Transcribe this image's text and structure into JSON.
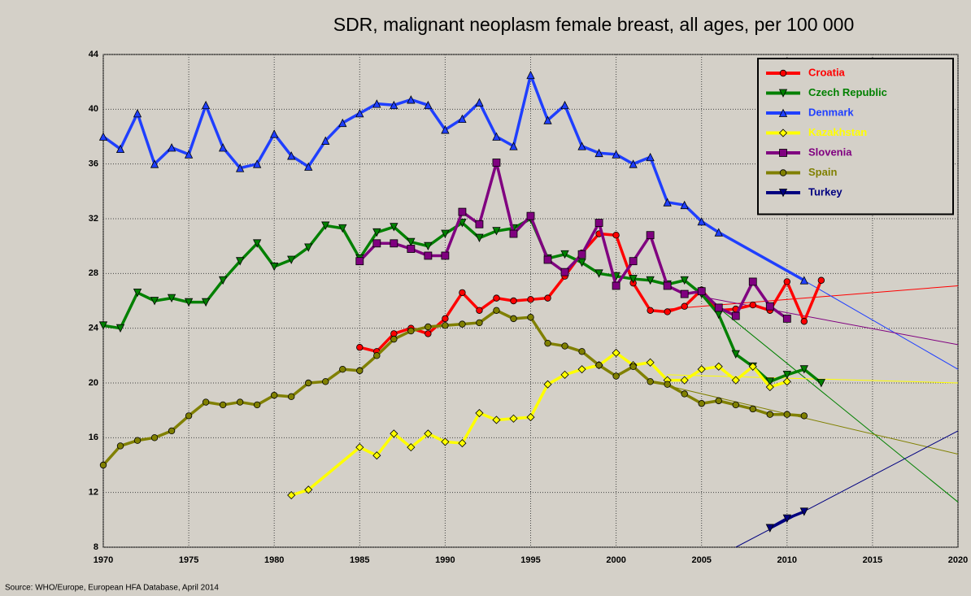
{
  "chart_data": {
    "type": "line",
    "title": "SDR, malignant neoplasm female breast, all ages, per 100 000",
    "source": "Source: WHO/Europe, European HFA Database, April 2014",
    "xlim": [
      1970,
      2020
    ],
    "xticks": [
      1970,
      1975,
      1980,
      1985,
      1990,
      1995,
      2000,
      2005,
      2010,
      2015,
      2020
    ],
    "ylim": [
      8,
      44
    ],
    "yticks": [
      8,
      12,
      16,
      20,
      24,
      28,
      32,
      36,
      40,
      44
    ],
    "grid": true,
    "legend": "upper right",
    "series": [
      {
        "name": "Croatia",
        "color": "#ff0000",
        "marker": "circle",
        "x": [
          1985,
          1986,
          1987,
          1988,
          1989,
          1990,
          1991,
          1992,
          1993,
          1994,
          1995,
          1996,
          1997,
          1998,
          1999,
          2000,
          2001,
          2002,
          2003,
          2004,
          2005,
          2006,
          2007,
          2008,
          2009,
          2010,
          2011,
          2012
        ],
        "values": [
          22.6,
          22.3,
          23.6,
          24.0,
          23.6,
          24.7,
          26.6,
          25.3,
          26.2,
          26.0,
          26.1,
          26.2,
          27.8,
          29.5,
          30.9,
          30.8,
          27.3,
          25.3,
          25.2,
          25.6,
          26.8,
          25.3,
          25.4,
          25.7,
          25.3,
          27.4,
          24.5,
          27.5
        ],
        "trend": {
          "x": [
            2003,
            2020
          ],
          "values": [
            25.4,
            27.1
          ]
        }
      },
      {
        "name": "Czech Republic",
        "color": "#008000",
        "marker": "tri-down",
        "x": [
          1970,
          1971,
          1972,
          1973,
          1974,
          1975,
          1976,
          1977,
          1978,
          1979,
          1980,
          1981,
          1982,
          1983,
          1984,
          1985,
          1986,
          1987,
          1988,
          1989,
          1990,
          1991,
          1992,
          1993,
          1994,
          1995,
          1996,
          1997,
          1998,
          1999,
          2000,
          2001,
          2002,
          2003,
          2004,
          2005,
          2006,
          2007,
          2008,
          2009,
          2010,
          2011,
          2012
        ],
        "values": [
          24.2,
          24.0,
          26.6,
          26.0,
          26.2,
          25.9,
          25.9,
          27.5,
          28.9,
          30.2,
          28.5,
          29.0,
          29.9,
          31.5,
          31.3,
          29.1,
          31.0,
          31.4,
          30.3,
          30.0,
          30.9,
          31.7,
          30.6,
          31.1,
          31.3,
          32.0,
          29.1,
          29.4,
          28.8,
          28.0,
          27.8,
          27.6,
          27.5,
          27.2,
          27.5,
          26.5,
          25.0,
          22.1,
          21.2,
          20.1,
          20.6,
          21.0,
          20.0
        ],
        "trend": {
          "x": [
            2005,
            2020
          ],
          "values": [
            26.5,
            11.3
          ]
        }
      },
      {
        "name": "Denmark",
        "color": "#1f3fff",
        "marker": "tri-up",
        "x": [
          1970,
          1971,
          1972,
          1973,
          1974,
          1975,
          1976,
          1977,
          1978,
          1979,
          1980,
          1981,
          1982,
          1983,
          1984,
          1985,
          1986,
          1987,
          1988,
          1989,
          1990,
          1991,
          1992,
          1993,
          1994,
          1995,
          1996,
          1997,
          1998,
          1999,
          2000,
          2001,
          2002,
          2003,
          2004,
          2005,
          2006,
          2011
        ],
        "values": [
          38.0,
          37.1,
          39.7,
          36.0,
          37.2,
          36.7,
          40.3,
          37.2,
          35.7,
          36.0,
          38.2,
          36.6,
          35.8,
          37.7,
          39.0,
          39.7,
          40.4,
          40.3,
          40.7,
          40.3,
          38.5,
          39.3,
          40.5,
          38.0,
          37.3,
          42.5,
          39.2,
          40.3,
          37.3,
          36.8,
          36.7,
          36.0,
          36.5,
          33.2,
          33.0,
          31.8,
          31.0,
          27.5
        ],
        "trend": {
          "x": [
            2005,
            2020
          ],
          "values": [
            31.8,
            21.0
          ]
        }
      },
      {
        "name": "Kazakhstan",
        "color": "#ffff00",
        "marker": "diamond",
        "x": [
          1981,
          1982,
          1985,
          1986,
          1987,
          1988,
          1989,
          1990,
          1991,
          1992,
          1993,
          1994,
          1995,
          1996,
          1997,
          1998,
          1999,
          2000,
          2001,
          2002,
          2003,
          2004,
          2005,
          2006,
          2007,
          2008,
          2009,
          2010
        ],
        "values": [
          11.8,
          12.2,
          15.3,
          14.7,
          16.3,
          15.3,
          16.3,
          15.7,
          15.6,
          17.8,
          17.3,
          17.4,
          17.5,
          19.9,
          20.6,
          21.0,
          21.3,
          22.2,
          21.3,
          21.5,
          20.2,
          20.2,
          21.0,
          21.2,
          20.2,
          21.2,
          19.7,
          20.1
        ],
        "trend": {
          "x": [
            2003,
            2020
          ],
          "values": [
            20.6,
            20.0
          ]
        }
      },
      {
        "name": "Slovenia",
        "color": "#800080",
        "marker": "square",
        "x": [
          1985,
          1986,
          1987,
          1988,
          1989,
          1990,
          1991,
          1992,
          1993,
          1994,
          1995,
          1996,
          1997,
          1998,
          1999,
          2000,
          2001,
          2002,
          2003,
          2004,
          2005,
          2006,
          2007,
          2008,
          2009,
          2010
        ],
        "values": [
          28.9,
          30.2,
          30.2,
          29.8,
          29.3,
          29.3,
          32.5,
          31.6,
          36.1,
          30.9,
          32.2,
          29.0,
          28.1,
          29.4,
          31.7,
          27.1,
          28.9,
          30.8,
          27.1,
          26.5,
          26.7,
          25.5,
          24.9,
          27.4,
          25.6,
          24.7
        ],
        "trend": {
          "x": [
            2005,
            2020
          ],
          "values": [
            26.3,
            22.8
          ]
        }
      },
      {
        "name": "Spain",
        "color": "#808000",
        "marker": "circle",
        "x": [
          1970,
          1971,
          1972,
          1973,
          1974,
          1975,
          1976,
          1977,
          1978,
          1979,
          1980,
          1981,
          1982,
          1983,
          1984,
          1985,
          1986,
          1987,
          1988,
          1989,
          1990,
          1991,
          1992,
          1993,
          1994,
          1995,
          1996,
          1997,
          1998,
          1999,
          2000,
          2001,
          2002,
          2003,
          2004,
          2005,
          2006,
          2007,
          2008,
          2009,
          2010,
          2011
        ],
        "values": [
          14.0,
          15.4,
          15.8,
          16.0,
          16.5,
          17.6,
          18.6,
          18.4,
          18.6,
          18.4,
          19.1,
          19.0,
          20.0,
          20.1,
          21.0,
          20.9,
          22.0,
          23.2,
          23.8,
          24.1,
          24.2,
          24.3,
          24.4,
          25.3,
          24.7,
          24.8,
          22.9,
          22.7,
          22.3,
          21.3,
          20.5,
          21.2,
          20.1,
          19.9,
          19.2,
          18.5,
          18.7,
          18.4,
          18.1,
          17.7,
          17.7,
          17.6
        ],
        "trend": {
          "x": [
            2003,
            2020
          ],
          "values": [
            19.8,
            14.8
          ]
        }
      },
      {
        "name": "Turkey",
        "color": "#000080",
        "marker": "tri-down",
        "x": [
          2009,
          2010,
          2011
        ],
        "values": [
          9.4,
          10.1,
          10.6
        ],
        "trend": {
          "x": [
            2007,
            2020
          ],
          "values": [
            8.0,
            16.5
          ]
        }
      }
    ]
  }
}
